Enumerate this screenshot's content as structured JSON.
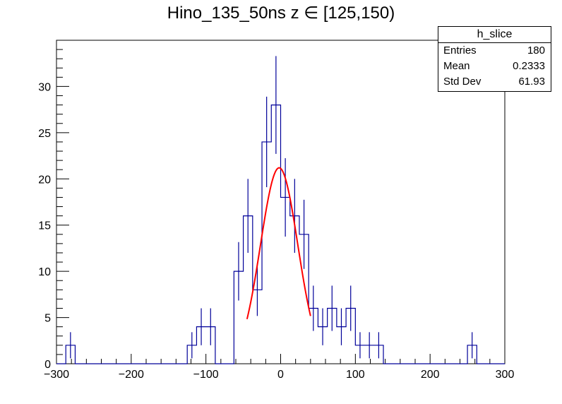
{
  "chart_data": {
    "type": "histogram",
    "title": "Hino_135_50ns z  ∈ [125,150)",
    "xlim": [
      -300,
      300
    ],
    "ylim": [
      0,
      35
    ],
    "x_ticks": [
      "−300",
      "−200",
      "−100",
      "0",
      "100",
      "200",
      "300"
    ],
    "x_tick_values": [
      -300,
      -200,
      -100,
      0,
      100,
      200,
      300
    ],
    "y_ticks": [
      "0",
      "5",
      "10",
      "15",
      "20",
      "25",
      "30"
    ],
    "y_tick_values": [
      0,
      5,
      10,
      15,
      20,
      25,
      30
    ],
    "bin_width": 12.5,
    "bins": [
      {
        "x0": -287.5,
        "count": 2
      },
      {
        "x0": -125,
        "count": 2
      },
      {
        "x0": -112.5,
        "count": 4
      },
      {
        "x0": -100,
        "count": 4
      },
      {
        "x0": -62.5,
        "count": 10
      },
      {
        "x0": -50,
        "count": 16
      },
      {
        "x0": -37.5,
        "count": 8
      },
      {
        "x0": -25,
        "count": 24
      },
      {
        "x0": -12.5,
        "count": 28
      },
      {
        "x0": 0,
        "count": 18
      },
      {
        "x0": 12.5,
        "count": 16
      },
      {
        "x0": 25,
        "count": 14
      },
      {
        "x0": 37.5,
        "count": 6
      },
      {
        "x0": 50,
        "count": 4
      },
      {
        "x0": 62.5,
        "count": 6
      },
      {
        "x0": 75,
        "count": 4
      },
      {
        "x0": 87.5,
        "count": 6
      },
      {
        "x0": 100,
        "count": 2
      },
      {
        "x0": 112.5,
        "count": 2
      },
      {
        "x0": 125,
        "count": 2
      },
      {
        "x0": 250,
        "count": 2
      }
    ],
    "fit": {
      "type": "gaussian",
      "amplitude": 21.2,
      "mean": -2,
      "sigma": 25,
      "x_range": [
        -45,
        40
      ]
    },
    "colors": {
      "histogram": "#000099",
      "fit": "#ff0000",
      "axes": "#000000"
    }
  },
  "stats": {
    "name": "h_slice",
    "rows": [
      {
        "label": "Entries",
        "value": "180"
      },
      {
        "label": "Mean",
        "value": "0.2333"
      },
      {
        "label": "Std Dev",
        "value": "61.93"
      }
    ]
  }
}
